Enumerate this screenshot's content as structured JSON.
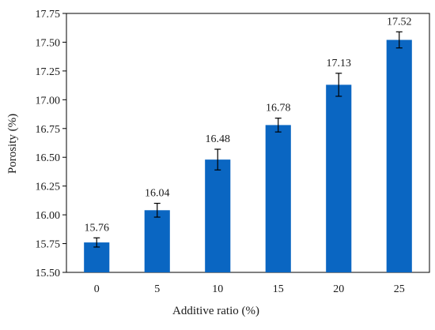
{
  "chart_data": {
    "type": "bar",
    "categories": [
      "0",
      "5",
      "10",
      "15",
      "20",
      "25"
    ],
    "values": [
      15.76,
      16.04,
      16.48,
      16.78,
      17.13,
      17.52
    ],
    "value_labels": [
      "15.76",
      "16.04",
      "16.48",
      "16.78",
      "17.13",
      "17.52"
    ],
    "error": [
      0.04,
      0.06,
      0.09,
      0.06,
      0.1,
      0.07
    ],
    "xlabel": "Additive ratio (%)",
    "ylabel": "Porosity (%)",
    "ylim": [
      15.5,
      17.75
    ],
    "yticks": [
      15.5,
      15.75,
      16.0,
      16.25,
      16.5,
      16.75,
      17.0,
      17.25,
      17.5,
      17.75
    ],
    "ytick_labels": [
      "15.50",
      "15.75",
      "16.00",
      "16.25",
      "16.50",
      "16.75",
      "17.00",
      "17.25",
      "17.50",
      "17.75"
    ],
    "grid": false,
    "bar_color": "#0a66c2",
    "axis_color": "#000000"
  }
}
